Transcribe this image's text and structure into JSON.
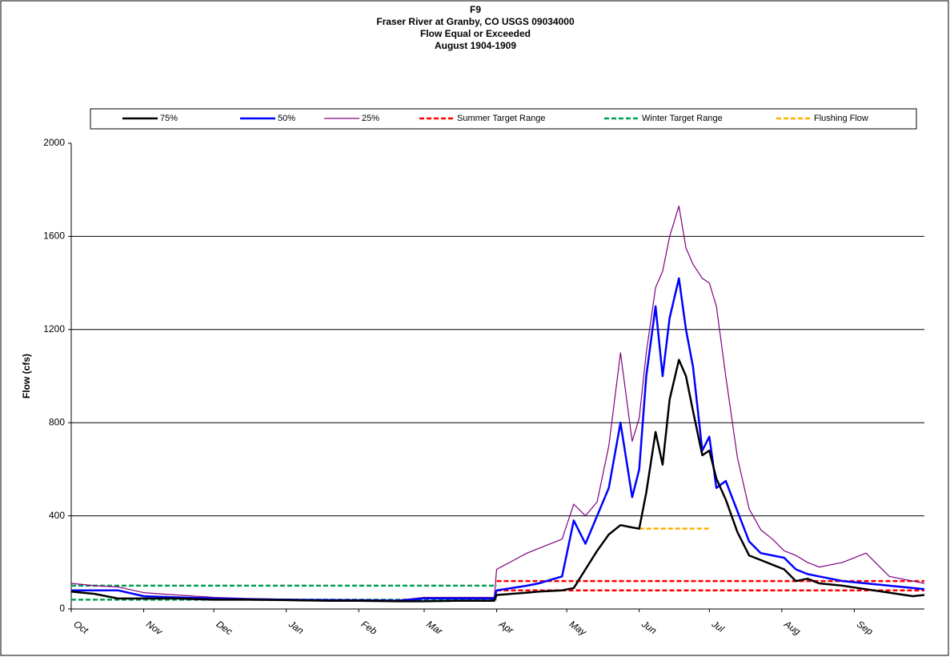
{
  "chart_data": {
    "type": "line",
    "title": [
      "F9",
      "Fraser River at Granby, CO USGS 09034000",
      "Flow Equal or Exceeded",
      "August 1904-1909"
    ],
    "ylabel": "Flow (cfs)",
    "xlim": [
      0,
      365
    ],
    "xticks": [
      {
        "value": 0,
        "label": "Oct"
      },
      {
        "value": 31,
        "label": "Nov"
      },
      {
        "value": 61,
        "label": "Dec"
      },
      {
        "value": 92,
        "label": "Jan"
      },
      {
        "value": 123,
        "label": "Feb"
      },
      {
        "value": 151,
        "label": "Mar"
      },
      {
        "value": 182,
        "label": "Apr"
      },
      {
        "value": 212,
        "label": "May"
      },
      {
        "value": 243,
        "label": "Jun"
      },
      {
        "value": 273,
        "label": "Jul"
      },
      {
        "value": 304,
        "label": "Aug"
      },
      {
        "value": 335,
        "label": "Sep"
      }
    ],
    "ylim": [
      0,
      2000
    ],
    "yticks": [
      0,
      400,
      800,
      1200,
      1600,
      2000
    ],
    "grid": true,
    "legend": "top",
    "x": [
      0,
      10,
      20,
      31,
      45,
      61,
      75,
      92,
      110,
      123,
      140,
      151,
      165,
      181,
      182,
      195,
      200,
      210,
      215,
      220,
      225,
      230,
      235,
      240,
      243,
      246,
      250,
      253,
      256,
      260,
      263,
      266,
      270,
      273,
      276,
      280,
      285,
      290,
      295,
      300,
      305,
      310,
      315,
      320,
      330,
      340,
      350,
      360,
      365
    ],
    "series": [
      {
        "name": "75%",
        "color": "#000000",
        "width": 2.5,
        "values": [
          75,
          65,
          45,
          45,
          45,
          40,
          40,
          38,
          35,
          35,
          33,
          33,
          35,
          35,
          60,
          70,
          75,
          80,
          90,
          170,
          250,
          320,
          360,
          350,
          345,
          500,
          760,
          620,
          900,
          1070,
          1000,
          850,
          660,
          680,
          560,
          470,
          330,
          230,
          210,
          190,
          170,
          120,
          130,
          110,
          100,
          85,
          70,
          55,
          60
        ]
      },
      {
        "name": "50%",
        "color": "#0000ff",
        "width": 2.5,
        "values": [
          80,
          80,
          80,
          55,
          50,
          45,
          42,
          40,
          38,
          37,
          35,
          45,
          45,
          45,
          80,
          100,
          110,
          140,
          380,
          280,
          400,
          520,
          800,
          480,
          600,
          1000,
          1300,
          1000,
          1250,
          1420,
          1200,
          1040,
          680,
          740,
          520,
          550,
          420,
          290,
          240,
          230,
          220,
          170,
          150,
          140,
          120,
          110,
          100,
          90,
          85
        ]
      },
      {
        "name": "25%",
        "color": "#800080",
        "width": 1.2,
        "values": [
          110,
          100,
          95,
          70,
          60,
          50,
          45,
          42,
          40,
          40,
          38,
          50,
          50,
          50,
          170,
          240,
          260,
          300,
          450,
          400,
          460,
          700,
          1100,
          720,
          820,
          1100,
          1380,
          1450,
          1600,
          1730,
          1550,
          1480,
          1420,
          1400,
          1300,
          1000,
          650,
          430,
          340,
          300,
          250,
          230,
          200,
          180,
          200,
          240,
          140,
          120,
          110
        ]
      }
    ],
    "reference_lines": [
      {
        "name": "Summer Target Range",
        "color": "#ff0000",
        "lines": [
          {
            "x": [
              182,
              365
            ],
            "values": [
              80,
              80
            ]
          },
          {
            "x": [
              182,
              365
            ],
            "values": [
              120,
              120
            ]
          }
        ]
      },
      {
        "name": "Winter Target Range",
        "color": "#00a050",
        "lines": [
          {
            "x": [
              0,
              182
            ],
            "values": [
              40,
              40
            ]
          },
          {
            "x": [
              0,
              182
            ],
            "values": [
              100,
              100
            ]
          }
        ]
      },
      {
        "name": "Flushing Flow",
        "color": "#ffb000",
        "lines": [
          {
            "x": [
              243,
              273
            ],
            "values": [
              345,
              345
            ]
          }
        ]
      }
    ]
  }
}
